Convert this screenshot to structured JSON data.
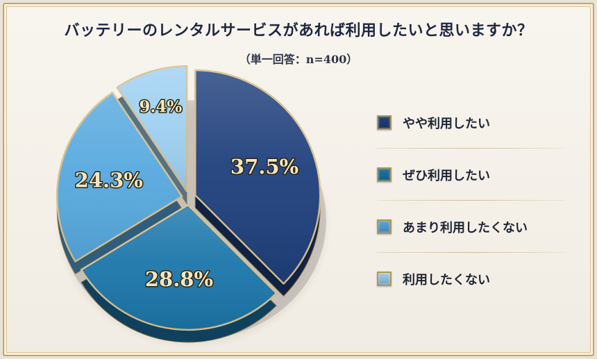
{
  "title": "バッテリーのレンタルサービスがあれば利用したいと思いますか？",
  "subtitle": "（単一回答：n=400）",
  "chart_data": {
    "type": "pie",
    "title": "バッテリーのレンタルサービスがあれば利用したいと思いますか？",
    "subtitle": "（単一回答：n=400）",
    "unit": "%",
    "categories": [
      "やや利用したい",
      "ぜひ利用したい",
      "あまり利用したくない",
      "利用したくない"
    ],
    "values": [
      37.5,
      28.8,
      24.3,
      9.4
    ],
    "labels": [
      "37.5%",
      "28.8%",
      "24.3%",
      "9.4%"
    ],
    "colors": [
      "#1f3f7c",
      "#1b76aa",
      "#57a9df",
      "#9fd0f2"
    ],
    "legend_position": "right"
  }
}
